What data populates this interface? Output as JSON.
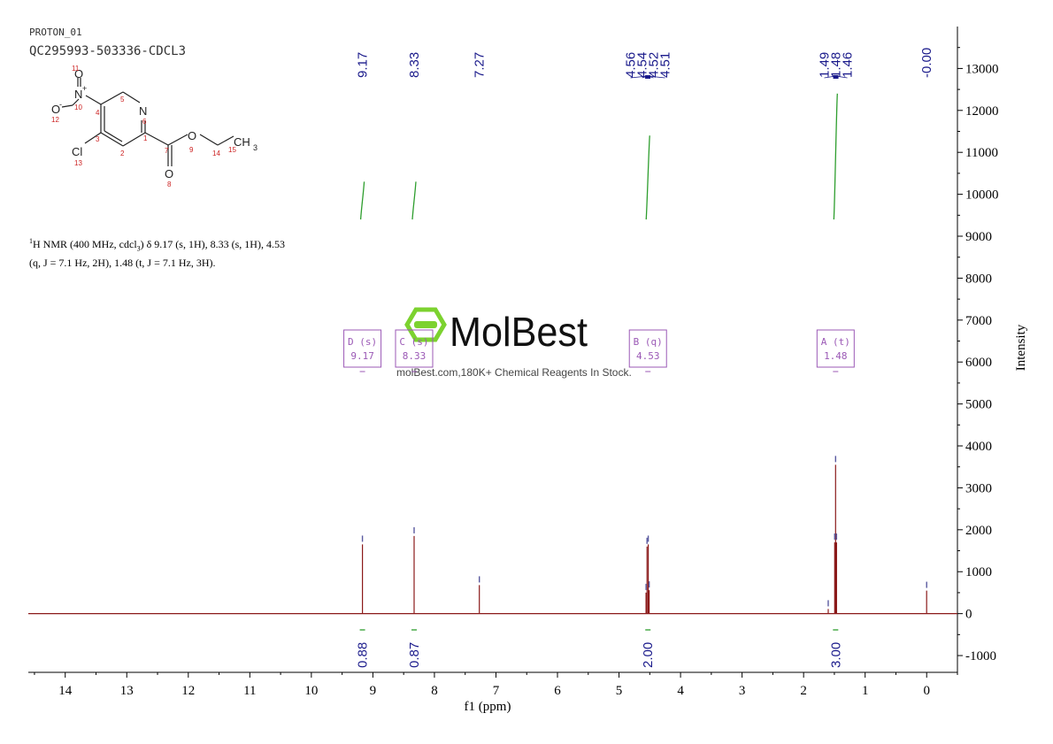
{
  "header": {
    "experiment": "PROTON_01",
    "sample": "QC295993-503336-CDCL3"
  },
  "nmr_description": {
    "part1": "H NMR (400 MHz, cdcl",
    "sup": "1",
    "sub": "3",
    "part2": ") δ 9.17 (s, 1H), 8.33 (s, 1H), 4.53 (q, J = 7.1 Hz, 2H), 1.48 (t, J = 7.1 Hz, 3H)."
  },
  "watermark": {
    "brand": "MolBest",
    "tagline": "molBest.com,180K+ Chemical Reagents In Stock."
  },
  "molecule": {
    "atoms": [
      "O",
      "N",
      "+",
      "O",
      "-",
      "N",
      "O",
      "O",
      "CH",
      "3",
      "Cl"
    ],
    "numbers": [
      "11",
      "10",
      "12",
      "5",
      "4",
      "6",
      "3",
      "1",
      "2",
      "7",
      "9",
      "14",
      "15",
      "13",
      "8"
    ]
  },
  "colors": {
    "spectrum": "#8b1a1a",
    "integral": "#2e9e2e",
    "peak_label": "#1a1a8b",
    "multiplet_box": "#9b59b6",
    "atom_number": "#cc2222"
  },
  "chart_data": {
    "type": "line",
    "xlabel": "f1 (ppm)",
    "ylabel": "Intensity",
    "xlim": [
      14.6,
      -0.5
    ],
    "ylim": [
      -1400,
      14000
    ],
    "x_ticks": [
      14,
      13,
      12,
      11,
      10,
      9,
      8,
      7,
      6,
      5,
      4,
      3,
      2,
      1,
      0
    ],
    "y_ticks": [
      13000,
      12000,
      11000,
      10000,
      9000,
      8000,
      7000,
      6000,
      5000,
      4000,
      3000,
      2000,
      1000,
      0,
      -1000
    ],
    "peaks": [
      {
        "ppm": 9.17,
        "height": 1650
      },
      {
        "ppm": 8.33,
        "height": 1850
      },
      {
        "ppm": 7.27,
        "height": 680
      },
      {
        "ppm": 4.56,
        "height": 500
      },
      {
        "ppm": 4.545,
        "height": 1600
      },
      {
        "ppm": 4.525,
        "height": 1650
      },
      {
        "ppm": 4.51,
        "height": 560
      },
      {
        "ppm": 1.6,
        "height": 110
      },
      {
        "ppm": 1.495,
        "height": 1700
      },
      {
        "ppm": 1.48,
        "height": 3550
      },
      {
        "ppm": 1.465,
        "height": 1700
      },
      {
        "ppm": 0.0,
        "height": 550
      }
    ],
    "peak_labels": [
      {
        "group": "single",
        "text": "9.17",
        "ppm": 9.17
      },
      {
        "group": "single",
        "text": "8.33",
        "ppm": 8.33
      },
      {
        "group": "single",
        "text": "7.27",
        "ppm": 7.27
      },
      {
        "group": "quartet",
        "text": "4.56",
        "ppm": 4.56
      },
      {
        "group": "quartet",
        "text": "4.54",
        "ppm": 4.54
      },
      {
        "group": "quartet",
        "text": "4.52",
        "ppm": 4.52
      },
      {
        "group": "quartet",
        "text": "4.51",
        "ppm": 4.51
      },
      {
        "group": "triplet",
        "text": "1.49",
        "ppm": 1.49
      },
      {
        "group": "triplet",
        "text": "1.48",
        "ppm": 1.48
      },
      {
        "group": "triplet",
        "text": "1.46",
        "ppm": 1.46
      },
      {
        "group": "single",
        "text": "-0.00",
        "ppm": 0.0
      }
    ],
    "multiplets": [
      {
        "letter": "D",
        "mult": "(s)",
        "shift": "9.17",
        "ppm": 9.17
      },
      {
        "letter": "C",
        "mult": "(s)",
        "shift": "8.33",
        "ppm": 8.33
      },
      {
        "letter": "B",
        "mult": "(q)",
        "shift": "4.53",
        "ppm": 4.53
      },
      {
        "letter": "A",
        "mult": "(t)",
        "shift": "1.48",
        "ppm": 1.48
      }
    ],
    "integrals": [
      {
        "ppm": 9.17,
        "value": "0.88",
        "from": 9400,
        "to": 10300
      },
      {
        "ppm": 8.33,
        "value": "0.87",
        "from": 9400,
        "to": 10300
      },
      {
        "ppm": 4.53,
        "value": "2.00",
        "from": 9400,
        "to": 11400
      },
      {
        "ppm": 1.48,
        "value": "3.00",
        "from": 9400,
        "to": 12400
      }
    ]
  }
}
